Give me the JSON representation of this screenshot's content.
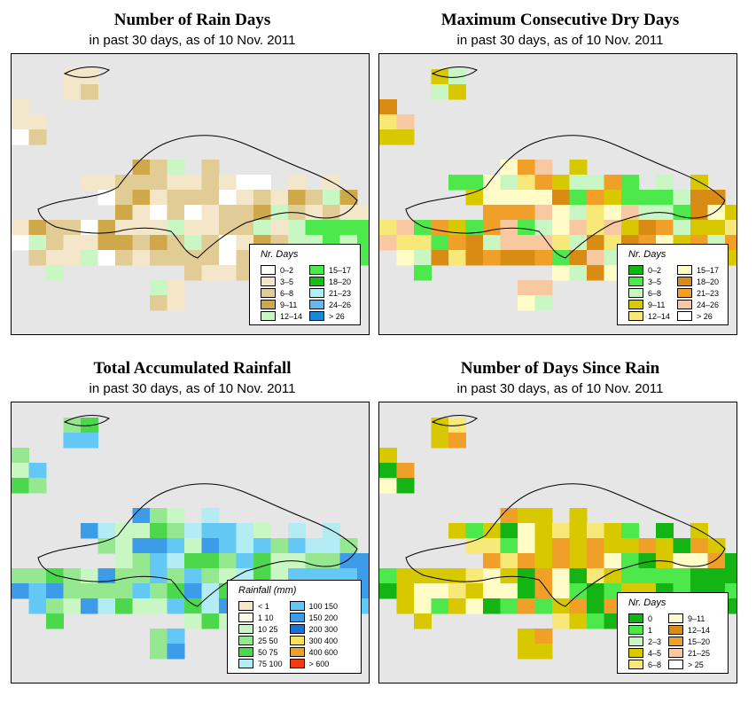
{
  "panels": [
    {
      "title": "Number of Rain Days",
      "subtitle": "in past 30 days, as of  10 Nov. 2011",
      "legend": {
        "title": "Nr. Days",
        "items": [
          {
            "label": "0–2",
            "color": "#ffffff"
          },
          {
            "label": "3–5",
            "color": "#f4e6c8"
          },
          {
            "label": "6–8",
            "color": "#e2cc96"
          },
          {
            "label": "9–11",
            "color": "#cfa84a"
          },
          {
            "label": "12–14",
            "color": "#c8f7c4"
          },
          {
            "label": "15–17",
            "color": "#4ce84c"
          },
          {
            "label": "18–20",
            "color": "#14be14"
          },
          {
            "label": "21–23",
            "color": "#b4ecf4"
          },
          {
            "label": "24–26",
            "color": "#64b8ec"
          },
          {
            "label": "> 26",
            "color": "#1888d8"
          }
        ]
      },
      "grid_pattern": [
        "....wbw..........",
        "b...wbw..........",
        "cb...............",
        "bbb..............",
        "...........b.b...",
        ".......bbbbbbbbb.",
        "....bbbbbbbbbbbbb",
        "..bcbbbbbbbbbbbbbb",
        "..bcbbcbcbbbbbbbbb",
        "bbcccbbbcbbbbbbbbb",
        "bbcddcbbcbbbbbdbb",
        "bbcddcbbbbbbbbbbbc",
        "bbbbbbcbcbbbbbgggg",
        "bbbbbcccbbbbbbggggg",
        ".bbbbbbbbbbbbbggg..",
        "....bb.....bbbbf.."
      ]
    },
    {
      "title": "Maximum Consecutive Dry Days",
      "subtitle": "in past 30 days, as of  10 Nov. 2011",
      "legend": {
        "title": "Nr. Days",
        "items": [
          {
            "label": "0–2",
            "color": "#14b414"
          },
          {
            "label": "3–5",
            "color": "#4ce84c"
          },
          {
            "label": "6–8",
            "color": "#c8f7c4"
          },
          {
            "label": "9–11",
            "color": "#d8c800"
          },
          {
            "label": "12–14",
            "color": "#f8e878"
          },
          {
            "label": "15–17",
            "color": "#fffcc8"
          },
          {
            "label": "18–20",
            "color": "#d88c14"
          },
          {
            "label": "21–23",
            "color": "#f0a028"
          },
          {
            "label": "24–26",
            "color": "#f8c8a0"
          },
          {
            "label": "> 26",
            "color": "#ffffff"
          }
        ]
      }
    },
    {
      "title": "Total Accumulated Rainfall",
      "subtitle": "in past 30 days, as of  10 Nov. 2011",
      "legend": {
        "title": "Rainfall (mm)",
        "items": [
          {
            "label": "< 1",
            "color": "#f4e6c8"
          },
          {
            "label": "1   10",
            "color": "#fff8e8"
          },
          {
            "label": "10   25",
            "color": "#c8f7c4"
          },
          {
            "label": "25   50",
            "color": "#96e890"
          },
          {
            "label": "50   75",
            "color": "#4cd84c"
          },
          {
            "label": "75  100",
            "color": "#b4ecf4"
          },
          {
            "label": "100  150",
            "color": "#64c8f4"
          },
          {
            "label": "150  200",
            "color": "#3c9ce8"
          },
          {
            "label": "200  300",
            "color": "#1870d8"
          },
          {
            "label": "300  400",
            "color": "#f8e060"
          },
          {
            "label": "400  600",
            "color": "#f0a028"
          },
          {
            "label": "> 600",
            "color": "#f03c14"
          }
        ]
      }
    },
    {
      "title": "Number of Days Since Rain",
      "subtitle": "in past 30 days, as of  10 Nov. 2011",
      "legend": {
        "title": "Nr. Days",
        "items": [
          {
            "label": "0",
            "color": "#14b414"
          },
          {
            "label": "1",
            "color": "#4ce84c"
          },
          {
            "label": "2–3",
            "color": "#c8f7c4"
          },
          {
            "label": "4–5",
            "color": "#d8c800"
          },
          {
            "label": "6–8",
            "color": "#f8e878"
          },
          {
            "label": "9–11",
            "color": "#fffcc8"
          },
          {
            "label": "12–14",
            "color": "#d88c14"
          },
          {
            "label": "15–20",
            "color": "#f0a028"
          },
          {
            "label": "21–25",
            "color": "#f8c8a0"
          },
          {
            "label": "> 25",
            "color": "#ffffff"
          }
        ]
      }
    }
  ]
}
